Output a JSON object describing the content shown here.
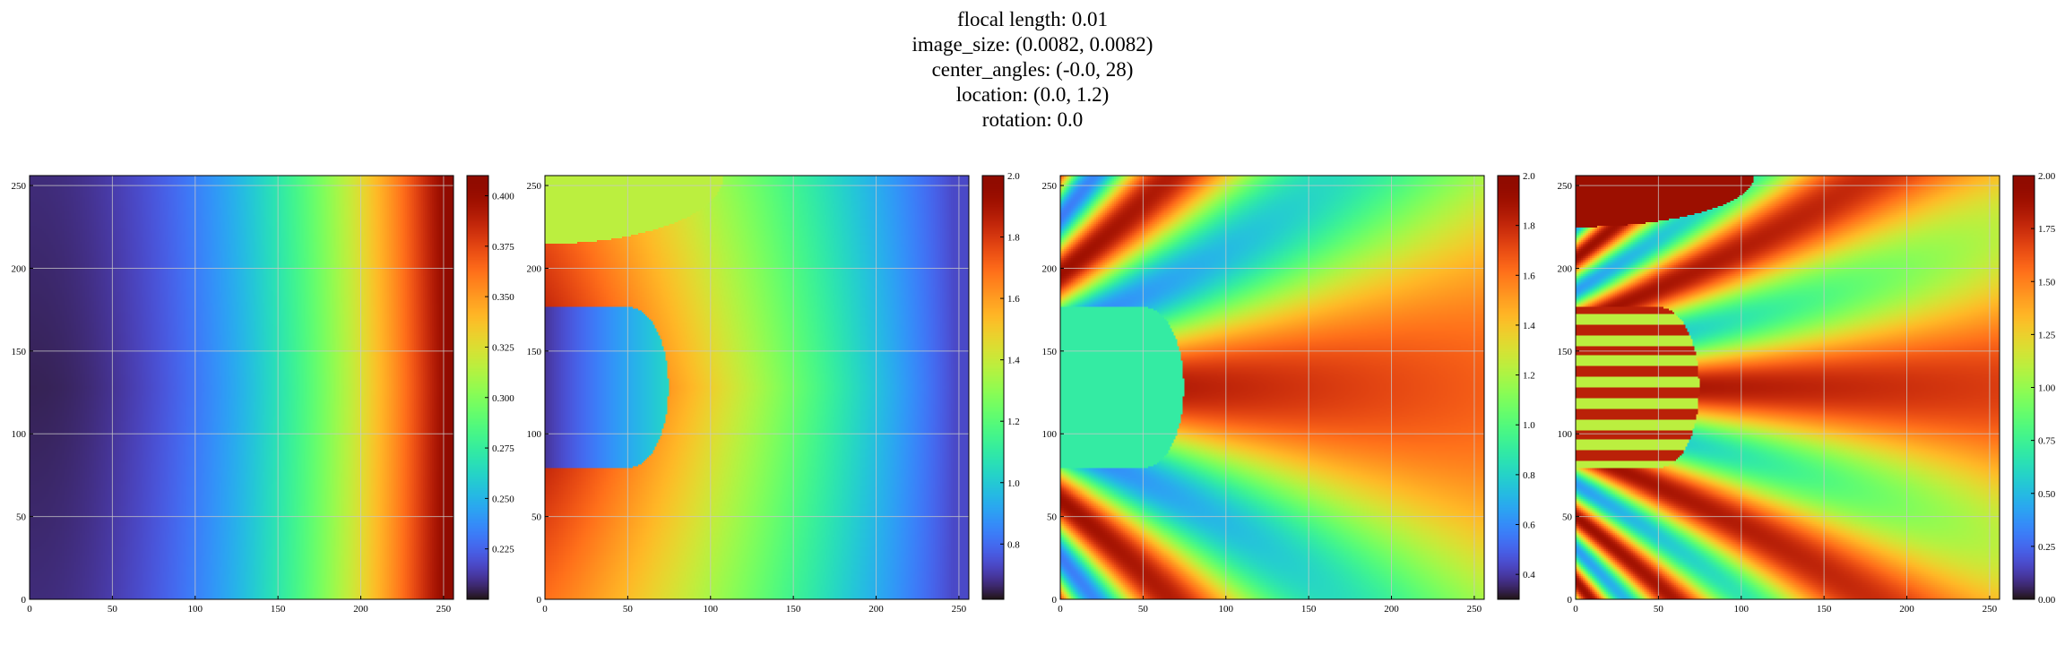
{
  "title_lines": [
    "flocal length: 0.01",
    "image_size: (0.0082, 0.0082)",
    "center_angles: (-0.0, 28)",
    "location: (0.0, 1.2)",
    "rotation: 0.0"
  ],
  "colormap": "turbo",
  "chart_data": [
    {
      "type": "heatmap",
      "grid": true,
      "xlim": [
        0,
        256
      ],
      "ylim": [
        0,
        256
      ],
      "xticks": [
        "0",
        "50",
        "100",
        "150",
        "200",
        "250"
      ],
      "yticks": [
        "0",
        "50",
        "100",
        "150",
        "200",
        "250"
      ],
      "colorbar": {
        "min": 0.2,
        "max": 0.41,
        "ticks": [
          "0.225",
          "0.250",
          "0.275",
          "0.300",
          "0.325",
          "0.350",
          "0.375",
          "0.400"
        ]
      },
      "description_of_field": "smooth gradient increasing left to right"
    },
    {
      "type": "heatmap",
      "grid": true,
      "xlim": [
        0,
        256
      ],
      "ylim": [
        0,
        256
      ],
      "xticks": [
        "0",
        "50",
        "100",
        "150",
        "200",
        "250"
      ],
      "yticks": [
        "0",
        "50",
        "100",
        "150",
        "200",
        "250"
      ],
      "colorbar": {
        "min": 0.62,
        "max": 2.0,
        "ticks": [
          "0.8",
          "1.0",
          "1.2",
          "1.4",
          "1.6",
          "1.8",
          "2.0"
        ]
      }
    },
    {
      "type": "heatmap",
      "grid": true,
      "xlim": [
        0,
        256
      ],
      "ylim": [
        0,
        256
      ],
      "xticks": [
        "0",
        "50",
        "100",
        "150",
        "200",
        "250"
      ],
      "yticks": [
        "0",
        "50",
        "100",
        "150",
        "200",
        "250"
      ],
      "colorbar": {
        "min": 0.3,
        "max": 2.0,
        "ticks": [
          "0.4",
          "0.6",
          "0.8",
          "1.0",
          "1.2",
          "1.4",
          "1.6",
          "1.8",
          "2.0"
        ]
      }
    },
    {
      "type": "heatmap",
      "grid": true,
      "xlim": [
        0,
        256
      ],
      "ylim": [
        0,
        256
      ],
      "xticks": [
        "0",
        "50",
        "100",
        "150",
        "200",
        "250"
      ],
      "yticks": [
        "0",
        "50",
        "100",
        "150",
        "200",
        "250"
      ],
      "colorbar": {
        "min": 0.0,
        "max": 2.0,
        "ticks": [
          "0.00",
          "0.25",
          "0.50",
          "0.75",
          "1.00",
          "1.25",
          "1.50",
          "1.75",
          "2.00"
        ]
      }
    }
  ]
}
